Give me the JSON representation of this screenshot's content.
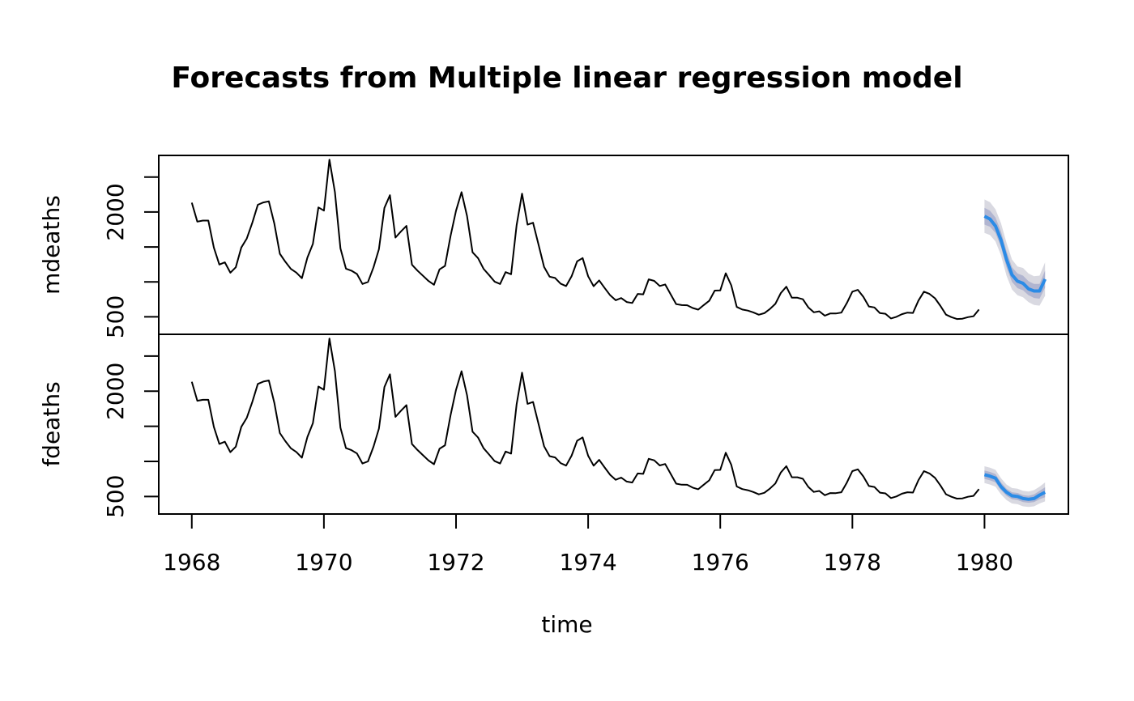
{
  "chart_data": {
    "type": "line",
    "title": "Forecasts from Multiple linear regression model",
    "xlabel": "time",
    "x_ticks": [
      1968,
      1970,
      1972,
      1974,
      1976,
      1978,
      1980
    ],
    "x_range": [
      1967.5,
      1981.27
    ],
    "grid": false,
    "frequency": 12,
    "start": 1968,
    "forecast_start": 1980,
    "forecast_color": "#2b8be6",
    "inner_band_color": "#b1b5d0",
    "outer_band_color": "#d9d9e1",
    "panels": [
      {
        "ylabel": "mdeaths",
        "y_range": [
          250,
          2810
        ],
        "y_ticks": [
          500,
          1000,
          1500,
          2000,
          2500
        ],
        "y_tick_labels": [
          "500",
          "",
          "",
          "2000",
          ""
        ],
        "values": [
          2134,
          1863,
          1877,
          1877,
          1492,
          1249,
          1280,
          1131,
          1209,
          1492,
          1621,
          1846,
          2103,
          2137,
          2153,
          1833,
          1403,
          1288,
          1186,
          1133,
          1053,
          1347,
          1545,
          2066,
          2020,
          2750,
          2283,
          1479,
          1189,
          1160,
          1113,
          970,
          999,
          1208,
          1467,
          2059,
          2240,
          1634,
          1722,
          1801,
          1246,
          1162,
          1087,
          1013,
          959,
          1179,
          1229,
          1655,
          2019,
          2284,
          1942,
          1423,
          1340,
          1187,
          1098,
          1004,
          970,
          1140,
          1110,
          1812,
          2263,
          1820,
          1846,
          1531,
          1215,
          1075,
          1056,
          975,
          940,
          1081,
          1294,
          1341,
          1080,
          938,
          1021,
          913,
          808,
          738,
          769,
          712,
          698,
          828,
          822,
          1036,
          1014,
          942,
          963,
          822,
          682,
          668,
          666,
          626,
          603,
          668,
          730,
          876,
          878,
          1123,
          951,
          642,
          605,
          589,
          564,
          530,
          552,
          611,
          685,
          841,
          931,
          774,
          774,
          752,
          636,
          565,
          579,
          517,
          549,
          548,
          560,
          697,
          861,
          886,
          785,
          649,
          635,
          554,
          544,
          477,
          500,
          539,
          560,
          556,
          733,
          861,
          828,
          766,
          656,
          531,
          496,
          469,
          473,
          496,
          508,
          604
        ],
        "forecast": {
          "mean": [
            1940,
            1900,
            1800,
            1600,
            1320,
            1100,
            1010,
            980,
            900,
            870,
            870,
            1040
          ],
          "lo80": [
            1820,
            1790,
            1700,
            1500,
            1210,
            1000,
            910,
            880,
            810,
            770,
            760,
            920
          ],
          "hi80": [
            2060,
            2020,
            1920,
            1720,
            1440,
            1210,
            1120,
            1090,
            1010,
            970,
            970,
            1160
          ],
          "lo95": [
            1700,
            1670,
            1580,
            1380,
            1090,
            890,
            810,
            780,
            710,
            670,
            660,
            800
          ],
          "hi95": [
            2180,
            2140,
            2040,
            1840,
            1560,
            1320,
            1220,
            1200,
            1120,
            1080,
            1090,
            1280
          ]
        }
      },
      {
        "ylabel": "fdeaths",
        "y_range": [
          250,
          2810
        ],
        "y_ticks": [
          500,
          1000,
          1500,
          2000,
          2500
        ],
        "y_tick_labels": [
          "500",
          "",
          "",
          "2000",
          ""
        ],
        "values": [
          2134,
          1863,
          1877,
          1877,
          1492,
          1249,
          1280,
          1131,
          1209,
          1492,
          1621,
          1846,
          2103,
          2137,
          2153,
          1833,
          1403,
          1288,
          1186,
          1133,
          1053,
          1347,
          1545,
          2066,
          2020,
          2750,
          2283,
          1479,
          1189,
          1160,
          1113,
          970,
          999,
          1208,
          1467,
          2059,
          2240,
          1634,
          1722,
          1801,
          1246,
          1162,
          1087,
          1013,
          959,
          1179,
          1229,
          1655,
          2019,
          2284,
          1942,
          1423,
          1340,
          1187,
          1098,
          1004,
          970,
          1140,
          1110,
          1812,
          2263,
          1820,
          1846,
          1531,
          1215,
          1075,
          1056,
          975,
          940,
          1081,
          1294,
          1341,
          1080,
          938,
          1021,
          913,
          808,
          738,
          769,
          712,
          698,
          828,
          822,
          1036,
          1014,
          942,
          963,
          822,
          682,
          668,
          666,
          626,
          603,
          668,
          730,
          876,
          878,
          1123,
          951,
          642,
          605,
          589,
          564,
          530,
          552,
          611,
          685,
          841,
          931,
          774,
          774,
          752,
          636,
          565,
          579,
          517,
          549,
          548,
          560,
          697,
          861,
          886,
          785,
          649,
          635,
          554,
          544,
          477,
          500,
          539,
          560,
          556,
          733,
          861,
          828,
          766,
          656,
          531,
          496,
          469,
          473,
          496,
          508,
          604
        ],
        "forecast": {
          "mean": [
            810,
            790,
            760,
            640,
            560,
            510,
            500,
            470,
            460,
            470,
            520,
            560
          ],
          "lo80": [
            750,
            730,
            700,
            590,
            510,
            460,
            450,
            420,
            410,
            420,
            460,
            490
          ],
          "hi80": [
            870,
            850,
            820,
            700,
            610,
            560,
            550,
            520,
            510,
            530,
            580,
            630
          ],
          "lo95": [
            690,
            670,
            640,
            530,
            450,
            400,
            390,
            360,
            350,
            360,
            400,
            430
          ],
          "hi95": [
            930,
            910,
            880,
            760,
            670,
            620,
            610,
            580,
            570,
            590,
            640,
            700
          ]
        }
      }
    ]
  }
}
